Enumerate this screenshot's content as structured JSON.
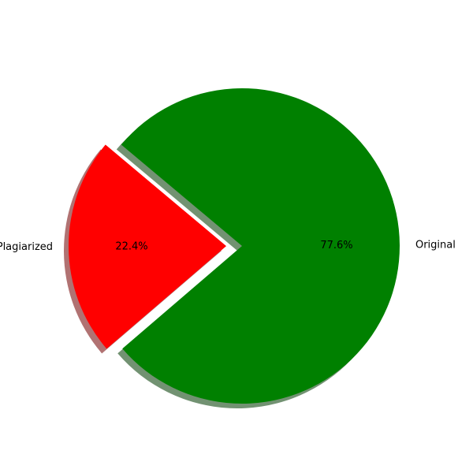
{
  "chart_data": {
    "type": "pie",
    "slices": [
      {
        "label": "Plagiarized",
        "value": 22.4,
        "pct_label": "22.4%",
        "color": "#ff0000",
        "exploded": true
      },
      {
        "label": "Original",
        "value": 77.6,
        "pct_label": "77.6%",
        "color": "#008000",
        "exploded": false
      }
    ],
    "start_angle_deg": 140,
    "shadow": true,
    "title": ""
  }
}
